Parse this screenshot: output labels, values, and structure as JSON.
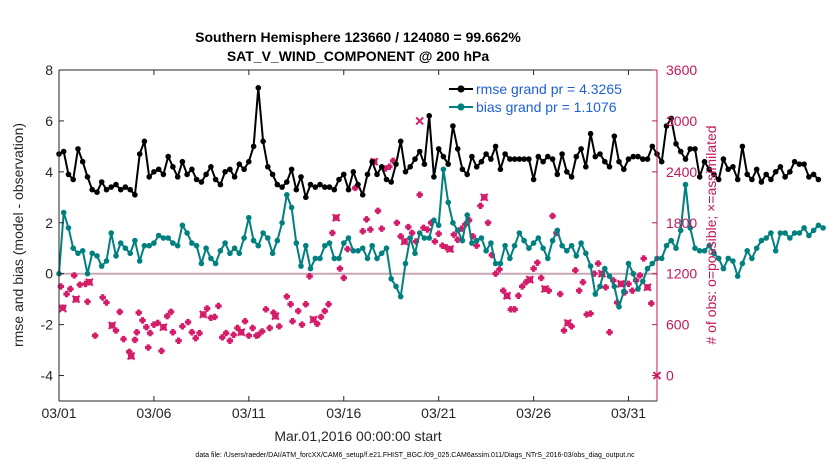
{
  "chart_data": {
    "type": "line",
    "title": "Southern Hemisphere 123660 / 124080 = 99.662%",
    "subtitle": "SAT_V_WIND_COMPONENT @ 200 hPa",
    "xlabel": "Mar.01,2016 00:00:00 start",
    "ylabel": "rmse and bias (model - observation)",
    "ylabel_right": "# of obs: o=possible; ×=assimilated",
    "footnote": "data file: /Users/raeder/DAI/ATM_forcXX/CAM6_setup/f.e21.FHIST_BGC.f09_025.CAM6assim.011/Diags_NTrS_2016-03/obs_diag_output.nc",
    "xlim": [
      0,
      31.5
    ],
    "ylim": [
      -5,
      8
    ],
    "ylim_right": [
      -300,
      3600
    ],
    "x_ticks": [
      {
        "value": 0,
        "label": "03/01"
      },
      {
        "value": 5,
        "label": "03/06"
      },
      {
        "value": 10,
        "label": "03/11"
      },
      {
        "value": 15,
        "label": "03/16"
      },
      {
        "value": 20,
        "label": "03/21"
      },
      {
        "value": 25,
        "label": "03/26"
      },
      {
        "value": 30,
        "label": "03/31"
      }
    ],
    "y_ticks": [
      {
        "value": -4,
        "label": "-4"
      },
      {
        "value": -2,
        "label": "-2"
      },
      {
        "value": 0,
        "label": "0"
      },
      {
        "value": 2,
        "label": "2"
      },
      {
        "value": 4,
        "label": "4"
      },
      {
        "value": 6,
        "label": "6"
      },
      {
        "value": 8,
        "label": "8"
      }
    ],
    "y_ticks_right": [
      {
        "value": 0,
        "label": "0"
      },
      {
        "value": 600,
        "label": "600"
      },
      {
        "value": 1200,
        "label": "1200"
      },
      {
        "value": 1800,
        "label": "1800"
      },
      {
        "value": 2400,
        "label": "2400"
      },
      {
        "value": 3000,
        "label": "3000"
      },
      {
        "value": 3600,
        "label": "3600"
      }
    ],
    "legend_position": "top-right",
    "grid": false,
    "x_step_days": 0.25,
    "series": [
      {
        "name": "rmse grand pr = 4.3265",
        "color": "#000000",
        "axis": "left",
        "values": [
          4.7,
          4.8,
          3.9,
          3.7,
          4.9,
          4.4,
          3.8,
          3.3,
          3.2,
          3.6,
          3.3,
          3.4,
          3.5,
          3.3,
          3.4,
          3.3,
          3.1,
          4.7,
          5.2,
          3.8,
          4.0,
          4.1,
          3.9,
          4.6,
          4.2,
          3.8,
          4.4,
          3.9,
          4.1,
          3.7,
          3.6,
          3.9,
          4.2,
          3.7,
          3.5,
          4.0,
          4.1,
          3.8,
          4.3,
          4.1,
          4.4,
          5.0,
          7.3,
          5.2,
          4.2,
          3.9,
          3.5,
          3.4,
          3.6,
          4.1,
          3.3,
          3.8,
          3.0,
          3.5,
          3.4,
          3.5,
          3.4,
          3.4,
          3.3,
          3.7,
          3.9,
          3.3,
          4.0,
          3.5,
          3.1,
          3.9,
          4.4,
          3.9,
          4.2,
          3.7,
          3.6,
          4.3,
          5.2,
          4.0,
          4.2,
          4.5,
          4.8,
          4.3,
          6.2,
          3.8,
          4.9,
          4.6,
          4.3,
          5.8,
          4.9,
          4.1,
          3.9,
          4.6,
          4.2,
          4.4,
          4.7,
          4.5,
          5.0,
          4.1,
          4.7,
          4.5,
          4.5,
          4.5,
          4.5,
          4.5,
          3.7,
          4.6,
          4.4,
          4.6,
          4.5,
          3.9,
          4.7,
          4.0,
          3.8,
          4.6,
          4.9,
          4.2,
          5.5,
          4.6,
          4.7,
          4.4,
          4.2,
          5.4,
          4.4,
          4.1,
          4.5,
          4.6,
          4.6,
          4.5,
          4.5,
          5.0,
          4.7,
          4.4,
          5.8,
          6.1,
          5.1,
          4.8,
          4.5,
          4.9,
          4.9,
          3.8,
          4.4,
          4.1,
          3.9,
          3.7,
          4.5,
          4.1,
          4.2,
          3.7,
          5.0,
          3.9,
          3.7,
          4.1,
          3.6,
          3.9,
          3.7,
          4.0,
          4.2,
          3.8,
          4.0,
          4.4,
          4.3,
          4.3,
          3.8,
          3.9,
          3.7
        ]
      },
      {
        "name": "bias grand pr = 1.1076",
        "color": "#00807f",
        "axis": "left",
        "values": [
          0,
          2.4,
          1.8,
          1.0,
          0.8,
          0.9,
          0,
          0.8,
          0.7,
          0.3,
          0.5,
          1.6,
          0.7,
          1.2,
          1.0,
          0.8,
          1.3,
          0.5,
          1.1,
          1.1,
          1.2,
          1.5,
          1.4,
          1.4,
          1.2,
          1.1,
          1.9,
          1.6,
          1.2,
          1.1,
          0.4,
          1.0,
          0.6,
          0.4,
          0.9,
          1.2,
          0.8,
          1.0,
          0.8,
          1.4,
          2.2,
          1.3,
          1.1,
          1.6,
          1.4,
          0.8,
          1.3,
          2.0,
          3.1,
          2.6,
          1.2,
          0.3,
          1.1,
          0.2,
          0.6,
          0.6,
          1.1,
          1.2,
          0.6,
          0.6,
          1.2,
          1.4,
          0.9,
          0.9,
          1.0,
          0.6,
          1.1,
          0.6,
          0.8,
          1.0,
          -0.2,
          -0.5,
          -0.9,
          0.4,
          1.4,
          0.8,
          1.6,
          1.4,
          1.4,
          2.1,
          1.9,
          4.1,
          2.8,
          2.0,
          1.7,
          1.3,
          2.3,
          1.2,
          1.3,
          1.4,
          0.9,
          1.2,
          0.4,
          0.4,
          1.1,
          0.6,
          1.1,
          1.6,
          1.3,
          1.0,
          1.2,
          1.4,
          1.0,
          0.6,
          1.3,
          1.7,
          1.1,
          0.9,
          1.1,
          0.7,
          1.2,
          0.8,
          0.3,
          -0.8,
          -0.5,
          0.2,
          -0.1,
          -0.5,
          -1.3,
          -0.7,
          0.4,
          0.0,
          -0.6,
          -0.3,
          0.2,
          0.4,
          0.6,
          0.6,
          1.1,
          1.3,
          1.0,
          1.7,
          3.5,
          1.8,
          1.0,
          0.9,
          0.9,
          1.1,
          0.8,
          0.6,
          0.2,
          0.6,
          0.5,
          -0.1,
          0.4,
          0.9,
          0.6,
          1.0,
          1.3,
          1.4,
          1.6,
          0.9,
          1.6,
          1.6,
          1.4,
          1.6,
          1.6,
          1.8,
          1.5,
          1.7,
          1.9,
          1.8
        ]
      }
    ],
    "obs_possible": {
      "color": "#d41d6a",
      "axis": "right",
      "points": [
        [
          0.1,
          1050
        ],
        [
          0.2,
          800
        ],
        [
          0.4,
          960
        ],
        [
          0.6,
          1020
        ],
        [
          0.8,
          1180
        ],
        [
          0.9,
          900
        ],
        [
          1.1,
          1070
        ],
        [
          1.4,
          1080
        ],
        [
          1.5,
          870
        ],
        [
          1.6,
          1100
        ],
        [
          1.9,
          470
        ],
        [
          2.3,
          920
        ],
        [
          2.5,
          860
        ],
        [
          2.8,
          590
        ],
        [
          3.0,
          530
        ],
        [
          3.2,
          750
        ],
        [
          3.4,
          430
        ],
        [
          3.7,
          280
        ],
        [
          3.8,
          230
        ],
        [
          4.0,
          420
        ],
        [
          4.1,
          510
        ],
        [
          4.2,
          740
        ],
        [
          4.4,
          650
        ],
        [
          4.6,
          570
        ],
        [
          4.7,
          330
        ],
        [
          4.8,
          500
        ],
        [
          5.0,
          600
        ],
        [
          5.2,
          620
        ],
        [
          5.4,
          290
        ],
        [
          5.5,
          570
        ],
        [
          5.7,
          700
        ],
        [
          5.9,
          750
        ],
        [
          6.0,
          510
        ],
        [
          6.3,
          410
        ],
        [
          6.5,
          580
        ],
        [
          6.8,
          630
        ],
        [
          7.0,
          510
        ],
        [
          7.2,
          440
        ],
        [
          7.4,
          500
        ],
        [
          7.6,
          720
        ],
        [
          7.8,
          790
        ],
        [
          8.0,
          680
        ],
        [
          8.2,
          690
        ],
        [
          8.4,
          820
        ],
        [
          8.6,
          450
        ],
        [
          8.8,
          500
        ],
        [
          9.0,
          410
        ],
        [
          9.2,
          480
        ],
        [
          9.4,
          560
        ],
        [
          9.6,
          510
        ],
        [
          9.8,
          640
        ],
        [
          10.0,
          470
        ],
        [
          10.2,
          560
        ],
        [
          10.4,
          470
        ],
        [
          10.5,
          480
        ],
        [
          10.7,
          520
        ],
        [
          10.9,
          780
        ],
        [
          11.1,
          560
        ],
        [
          11.3,
          740
        ],
        [
          11.4,
          700
        ],
        [
          11.6,
          580
        ],
        [
          12.0,
          930
        ],
        [
          12.2,
          840
        ],
        [
          12.3,
          640
        ],
        [
          12.6,
          760
        ],
        [
          12.8,
          600
        ],
        [
          13.0,
          840
        ],
        [
          13.2,
          1170
        ],
        [
          13.4,
          660
        ],
        [
          13.6,
          610
        ],
        [
          13.8,
          690
        ],
        [
          14.0,
          760
        ],
        [
          14.2,
          840
        ],
        [
          14.4,
          1680
        ],
        [
          14.6,
          1860
        ],
        [
          14.8,
          1260
        ],
        [
          15.0,
          1150
        ],
        [
          15.2,
          1490
        ],
        [
          15.6,
          2210
        ],
        [
          16.0,
          1700
        ],
        [
          16.2,
          1840
        ],
        [
          16.4,
          1720
        ],
        [
          16.6,
          2520
        ],
        [
          16.8,
          1940
        ],
        [
          17.0,
          1730
        ],
        [
          17.2,
          2440
        ],
        [
          17.4,
          2460
        ],
        [
          17.6,
          2530
        ],
        [
          17.8,
          1800
        ],
        [
          18.0,
          1640
        ],
        [
          18.2,
          1580
        ],
        [
          18.4,
          1750
        ],
        [
          18.6,
          1680
        ],
        [
          18.8,
          1580
        ],
        [
          19.0,
          2130
        ],
        [
          19.2,
          1740
        ],
        [
          19.4,
          1720
        ],
        [
          19.6,
          1800
        ],
        [
          19.8,
          1580
        ],
        [
          20.0,
          1670
        ],
        [
          20.2,
          1530
        ],
        [
          20.4,
          1510
        ],
        [
          20.6,
          1490
        ],
        [
          20.8,
          1660
        ],
        [
          21.0,
          1600
        ],
        [
          21.2,
          1730
        ],
        [
          21.4,
          1780
        ],
        [
          21.6,
          1830
        ],
        [
          21.8,
          1640
        ],
        [
          22.0,
          1530
        ],
        [
          22.2,
          2000
        ],
        [
          22.4,
          2100
        ],
        [
          22.6,
          1800
        ],
        [
          22.8,
          1420
        ],
        [
          23.0,
          1200
        ],
        [
          23.2,
          1250
        ],
        [
          23.4,
          1000
        ],
        [
          23.6,
          940
        ],
        [
          23.8,
          780
        ],
        [
          24.0,
          780
        ],
        [
          24.2,
          940
        ],
        [
          24.4,
          1050
        ],
        [
          24.6,
          1100
        ],
        [
          24.8,
          1130
        ],
        [
          25.0,
          1260
        ],
        [
          25.2,
          1330
        ],
        [
          25.4,
          1150
        ],
        [
          25.6,
          1020
        ],
        [
          25.8,
          1000
        ],
        [
          26.0,
          1880
        ],
        [
          26.2,
          1680
        ],
        [
          26.4,
          960
        ],
        [
          26.6,
          530
        ],
        [
          26.8,
          620
        ],
        [
          27.0,
          580
        ],
        [
          27.2,
          1240
        ],
        [
          27.4,
          1000
        ],
        [
          27.6,
          1100
        ],
        [
          27.8,
          720
        ],
        [
          28.0,
          730
        ],
        [
          28.2,
          1200
        ],
        [
          28.4,
          1320
        ],
        [
          28.6,
          1200
        ],
        [
          28.8,
          1040
        ],
        [
          29.0,
          510
        ],
        [
          29.2,
          1120
        ],
        [
          29.4,
          860
        ],
        [
          29.6,
          1080
        ],
        [
          29.8,
          980
        ],
        [
          30.0,
          1080
        ],
        [
          30.2,
          1000
        ],
        [
          30.4,
          1120
        ],
        [
          30.6,
          1180
        ],
        [
          30.8,
          1380
        ],
        [
          31.0,
          1040
        ],
        [
          31.2,
          850
        ]
      ]
    },
    "obs_assimilated": {
      "color": "#d41d6a",
      "axis": "right",
      "points": [
        [
          0.2,
          790
        ],
        [
          0.9,
          900
        ],
        [
          1.6,
          1100
        ],
        [
          2.8,
          590
        ],
        [
          3.8,
          230
        ],
        [
          5.5,
          570
        ],
        [
          7.6,
          720
        ],
        [
          9.6,
          510
        ],
        [
          11.4,
          700
        ],
        [
          13.4,
          660
        ],
        [
          14.6,
          1860
        ],
        [
          16.6,
          2520
        ],
        [
          18.2,
          1580
        ],
        [
          19.0,
          3000
        ],
        [
          20.6,
          1490
        ],
        [
          22.4,
          2100
        ],
        [
          23.6,
          940
        ],
        [
          24.8,
          1130
        ],
        [
          25.6,
          1020
        ],
        [
          26.8,
          620
        ],
        [
          28.6,
          1200
        ],
        [
          29.6,
          1080
        ],
        [
          31.0,
          1040
        ],
        [
          31.5,
          0
        ]
      ]
    }
  }
}
